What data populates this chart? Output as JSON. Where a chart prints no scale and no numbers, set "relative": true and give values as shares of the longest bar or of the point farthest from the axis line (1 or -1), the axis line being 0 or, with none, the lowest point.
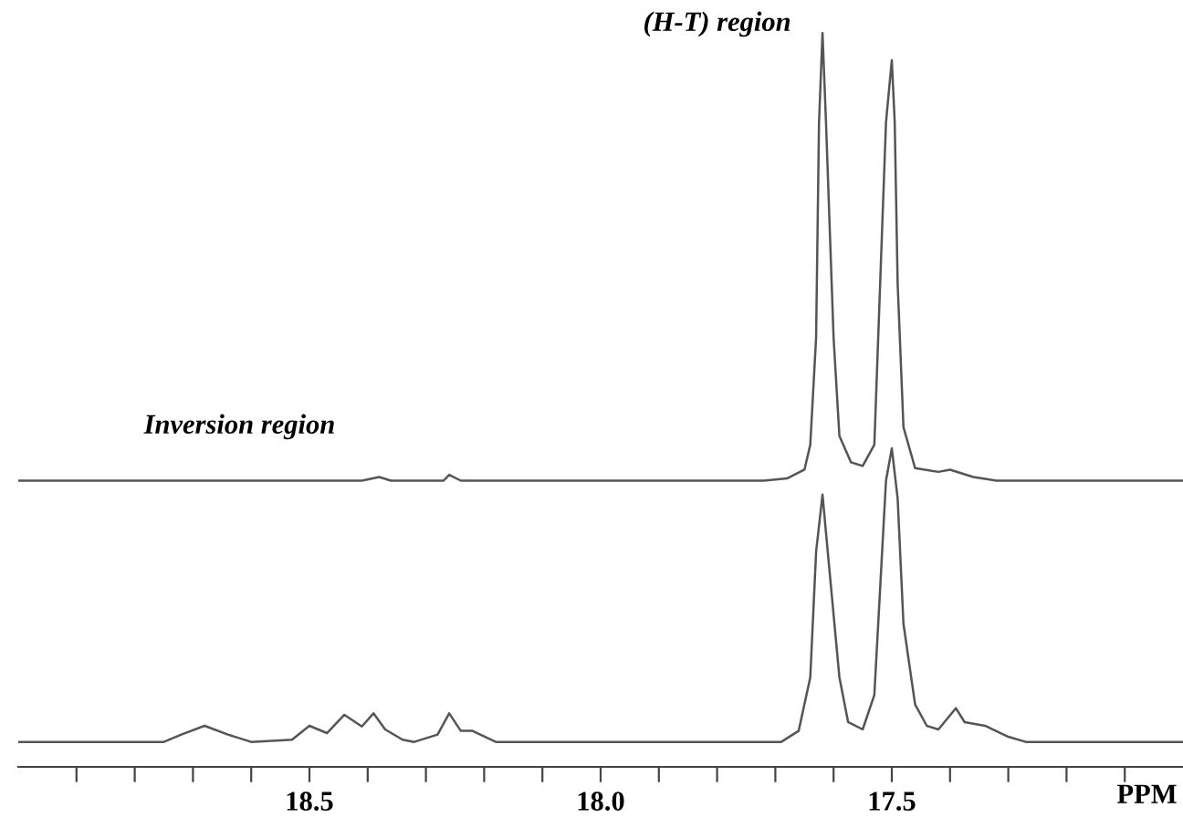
{
  "chart_data": {
    "type": "line",
    "relative": true,
    "xlabel": "PPM",
    "annotations": [
      "(H-T) region",
      "Inversion region"
    ],
    "xlim": [
      19.0,
      17.0
    ],
    "xticks": [
      {
        "value": 18.9,
        "label": null
      },
      {
        "value": 18.8,
        "label": null
      },
      {
        "value": 18.7,
        "label": null
      },
      {
        "value": 18.6,
        "label": null
      },
      18.5,
      {
        "value": 18.4,
        "label": null
      },
      {
        "value": 18.3,
        "label": null
      },
      {
        "value": 18.2,
        "label": null
      },
      {
        "value": 18.1,
        "label": null
      },
      {
        "value": 18.0,
        "label": "18.0"
      },
      {
        "value": 17.9,
        "label": null
      },
      {
        "value": 17.8,
        "label": null
      },
      {
        "value": 17.7,
        "label": null
      },
      {
        "value": 17.6,
        "label": null
      },
      17.5,
      {
        "value": 17.4,
        "label": null
      },
      {
        "value": 17.3,
        "label": null
      },
      {
        "value": 17.2,
        "label": null
      },
      {
        "value": 17.1,
        "label": null
      }
    ],
    "marker": "none",
    "line_style": "solid",
    "series": [
      {
        "color": "#555555",
        "x": [
          19.0,
          18.41,
          18.38,
          18.36,
          18.27,
          18.26,
          18.24,
          17.72,
          17.68,
          17.65,
          17.64,
          17.63,
          17.625,
          17.619,
          17.613,
          17.6,
          17.59,
          17.57,
          17.55,
          17.53,
          17.52,
          17.51,
          17.5,
          17.495,
          17.49,
          17.48,
          17.46,
          17.42,
          17.4,
          17.36,
          17.32,
          17.0
        ],
        "values": [
          0.39,
          0.39,
          0.395,
          0.39,
          0.39,
          0.398,
          0.39,
          0.39,
          0.393,
          0.405,
          0.439,
          0.585,
          0.878,
          1.0,
          0.878,
          0.585,
          0.451,
          0.415,
          0.41,
          0.439,
          0.659,
          0.878,
          0.963,
          0.878,
          0.659,
          0.463,
          0.407,
          0.402,
          0.405,
          0.395,
          0.39,
          0.39
        ]
      },
      {
        "color": "#555555",
        "x": [
          19.0,
          18.75,
          18.72,
          18.68,
          18.64,
          18.6,
          18.53,
          18.5,
          18.47,
          18.44,
          18.41,
          18.39,
          18.37,
          18.34,
          18.32,
          18.28,
          18.26,
          18.24,
          18.22,
          18.18,
          17.69,
          17.66,
          17.64,
          17.63,
          17.619,
          17.61,
          17.59,
          17.575,
          17.55,
          17.53,
          17.52,
          17.51,
          17.5,
          17.49,
          17.48,
          17.46,
          17.44,
          17.42,
          17.39,
          17.375,
          17.34,
          17.3,
          17.27,
          17.0
        ],
        "values": [
          0.034,
          0.034,
          0.044,
          0.056,
          0.044,
          0.034,
          0.037,
          0.056,
          0.046,
          0.071,
          0.055,
          0.073,
          0.051,
          0.037,
          0.034,
          0.044,
          0.073,
          0.049,
          0.049,
          0.034,
          0.034,
          0.049,
          0.122,
          0.293,
          0.371,
          0.293,
          0.122,
          0.061,
          0.051,
          0.098,
          0.244,
          0.39,
          0.434,
          0.366,
          0.195,
          0.085,
          0.056,
          0.051,
          0.08,
          0.061,
          0.056,
          0.041,
          0.034,
          0.034
        ]
      }
    ]
  }
}
